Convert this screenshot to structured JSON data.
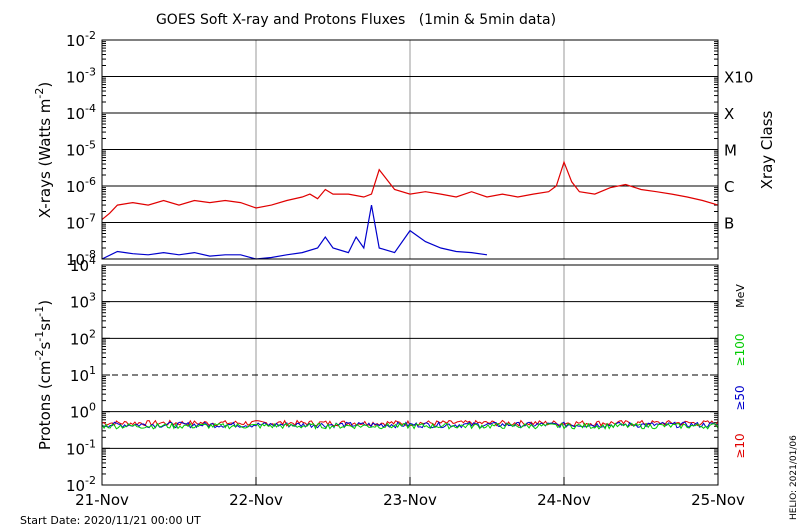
{
  "title": "GOES Soft X-ray and Protons Fluxes   (1min & 5min data)",
  "footer": {
    "start_date": "Start Date: 2020/11/21 00:00 UT",
    "credit": "HELIO: 2021/01/06"
  },
  "colors": {
    "xray_long": "#e00000",
    "xray_short": "#0000cc",
    "proton_10": "#e00000",
    "proton_50": "#0000cc",
    "proton_100": "#00cc00",
    "grid": "#000000",
    "day_line": "#999999"
  },
  "chart_data": [
    {
      "type": "line",
      "panel": "xray",
      "ylabel_base": "X-rays (Watts m",
      "ylabel_exp": "-2",
      "ylabel_close": ")",
      "y_scale": "log",
      "ylim": [
        1e-08,
        0.01
      ],
      "y_ticks": [
        {
          "base": "10",
          "exp": "-2"
        },
        {
          "base": "10",
          "exp": "-3"
        },
        {
          "base": "10",
          "exp": "-4"
        },
        {
          "base": "10",
          "exp": "-5"
        },
        {
          "base": "10",
          "exp": "-6"
        },
        {
          "base": "10",
          "exp": "-7"
        },
        {
          "base": "10",
          "exp": "-8"
        }
      ],
      "right_axis_label": "Xray Class",
      "right_axis_ticks": [
        "X10",
        "X",
        "M",
        "C",
        "B"
      ],
      "x_ticks": [
        "21-Nov",
        "22-Nov",
        "23-Nov",
        "24-Nov",
        "25-Nov"
      ],
      "xlim_days": [
        0,
        4
      ],
      "series": [
        {
          "key": "long",
          "x": [
            0,
            0.05,
            0.1,
            0.2,
            0.3,
            0.4,
            0.5,
            0.6,
            0.7,
            0.8,
            0.9,
            1.0,
            1.1,
            1.2,
            1.3,
            1.35,
            1.4,
            1.45,
            1.5,
            1.6,
            1.7,
            1.75,
            1.8,
            1.9,
            2.0,
            2.1,
            2.2,
            2.3,
            2.4,
            2.5,
            2.6,
            2.7,
            2.8,
            2.9,
            2.95,
            3.0,
            3.05,
            3.1,
            3.2,
            3.3,
            3.4,
            3.5,
            3.6,
            3.7,
            3.8,
            3.9,
            4.0
          ],
          "y": [
            1.2e-07,
            1.8e-07,
            3e-07,
            3.5e-07,
            3e-07,
            4e-07,
            3e-07,
            4e-07,
            3.5e-07,
            4e-07,
            3.5e-07,
            2.5e-07,
            3e-07,
            4e-07,
            5e-07,
            6e-07,
            4.5e-07,
            8e-07,
            6e-07,
            6e-07,
            5e-07,
            6e-07,
            2.8e-06,
            8e-07,
            6e-07,
            7e-07,
            6e-07,
            5e-07,
            7e-07,
            5e-07,
            6e-07,
            5e-07,
            6e-07,
            7e-07,
            1e-06,
            4.5e-06,
            1.3e-06,
            7e-07,
            6e-07,
            9e-07,
            1.1e-06,
            8e-07,
            7e-07,
            6e-07,
            5e-07,
            4e-07,
            3e-07
          ]
        },
        {
          "key": "short",
          "x": [
            0,
            0.1,
            0.2,
            0.3,
            0.4,
            0.5,
            0.6,
            0.7,
            0.8,
            0.9,
            1.0,
            1.1,
            1.2,
            1.3,
            1.4,
            1.45,
            1.5,
            1.6,
            1.65,
            1.7,
            1.75,
            1.8,
            1.9,
            2.0,
            2.1,
            2.2,
            2.3,
            2.4,
            2.5
          ],
          "y": [
            1e-08,
            1.6e-08,
            1.4e-08,
            1.3e-08,
            1.5e-08,
            1.3e-08,
            1.5e-08,
            1.2e-08,
            1.3e-08,
            1.3e-08,
            1e-08,
            1.1e-08,
            1.3e-08,
            1.5e-08,
            2e-08,
            4e-08,
            2e-08,
            1.5e-08,
            4e-08,
            2e-08,
            3e-07,
            2e-08,
            1.5e-08,
            6e-08,
            3e-08,
            2e-08,
            1.6e-08,
            1.5e-08,
            1.3e-08
          ]
        }
      ]
    },
    {
      "type": "line",
      "panel": "protons",
      "ylabel_base": "Protons (cm",
      "ylabel_exp1": "-2",
      "ylabel_mid": "s",
      "ylabel_exp2": "-1",
      "ylabel_mid2": "sr",
      "ylabel_exp3": "-1",
      "ylabel_close": ")",
      "y_scale": "log",
      "ylim": [
        0.01,
        10000
      ],
      "y_ticks": [
        {
          "base": "10",
          "exp": "4"
        },
        {
          "base": "10",
          "exp": "3"
        },
        {
          "base": "10",
          "exp": "2"
        },
        {
          "base": "10",
          "exp": "1"
        },
        {
          "base": "10",
          "exp": "0"
        },
        {
          "base": "10",
          "exp": "-1"
        },
        {
          "base": "10",
          "exp": "-2"
        }
      ],
      "threshold": 10,
      "right_unit": "MeV",
      "legend": [
        "≥100",
        "≥50",
        "≥10"
      ],
      "series": [
        {
          "name": "≥10",
          "key": "p10",
          "level": 0.48
        },
        {
          "name": "≥50",
          "key": "p50",
          "level": 0.43
        },
        {
          "name": "≥100",
          "key": "p100",
          "level": 0.4
        }
      ]
    }
  ]
}
